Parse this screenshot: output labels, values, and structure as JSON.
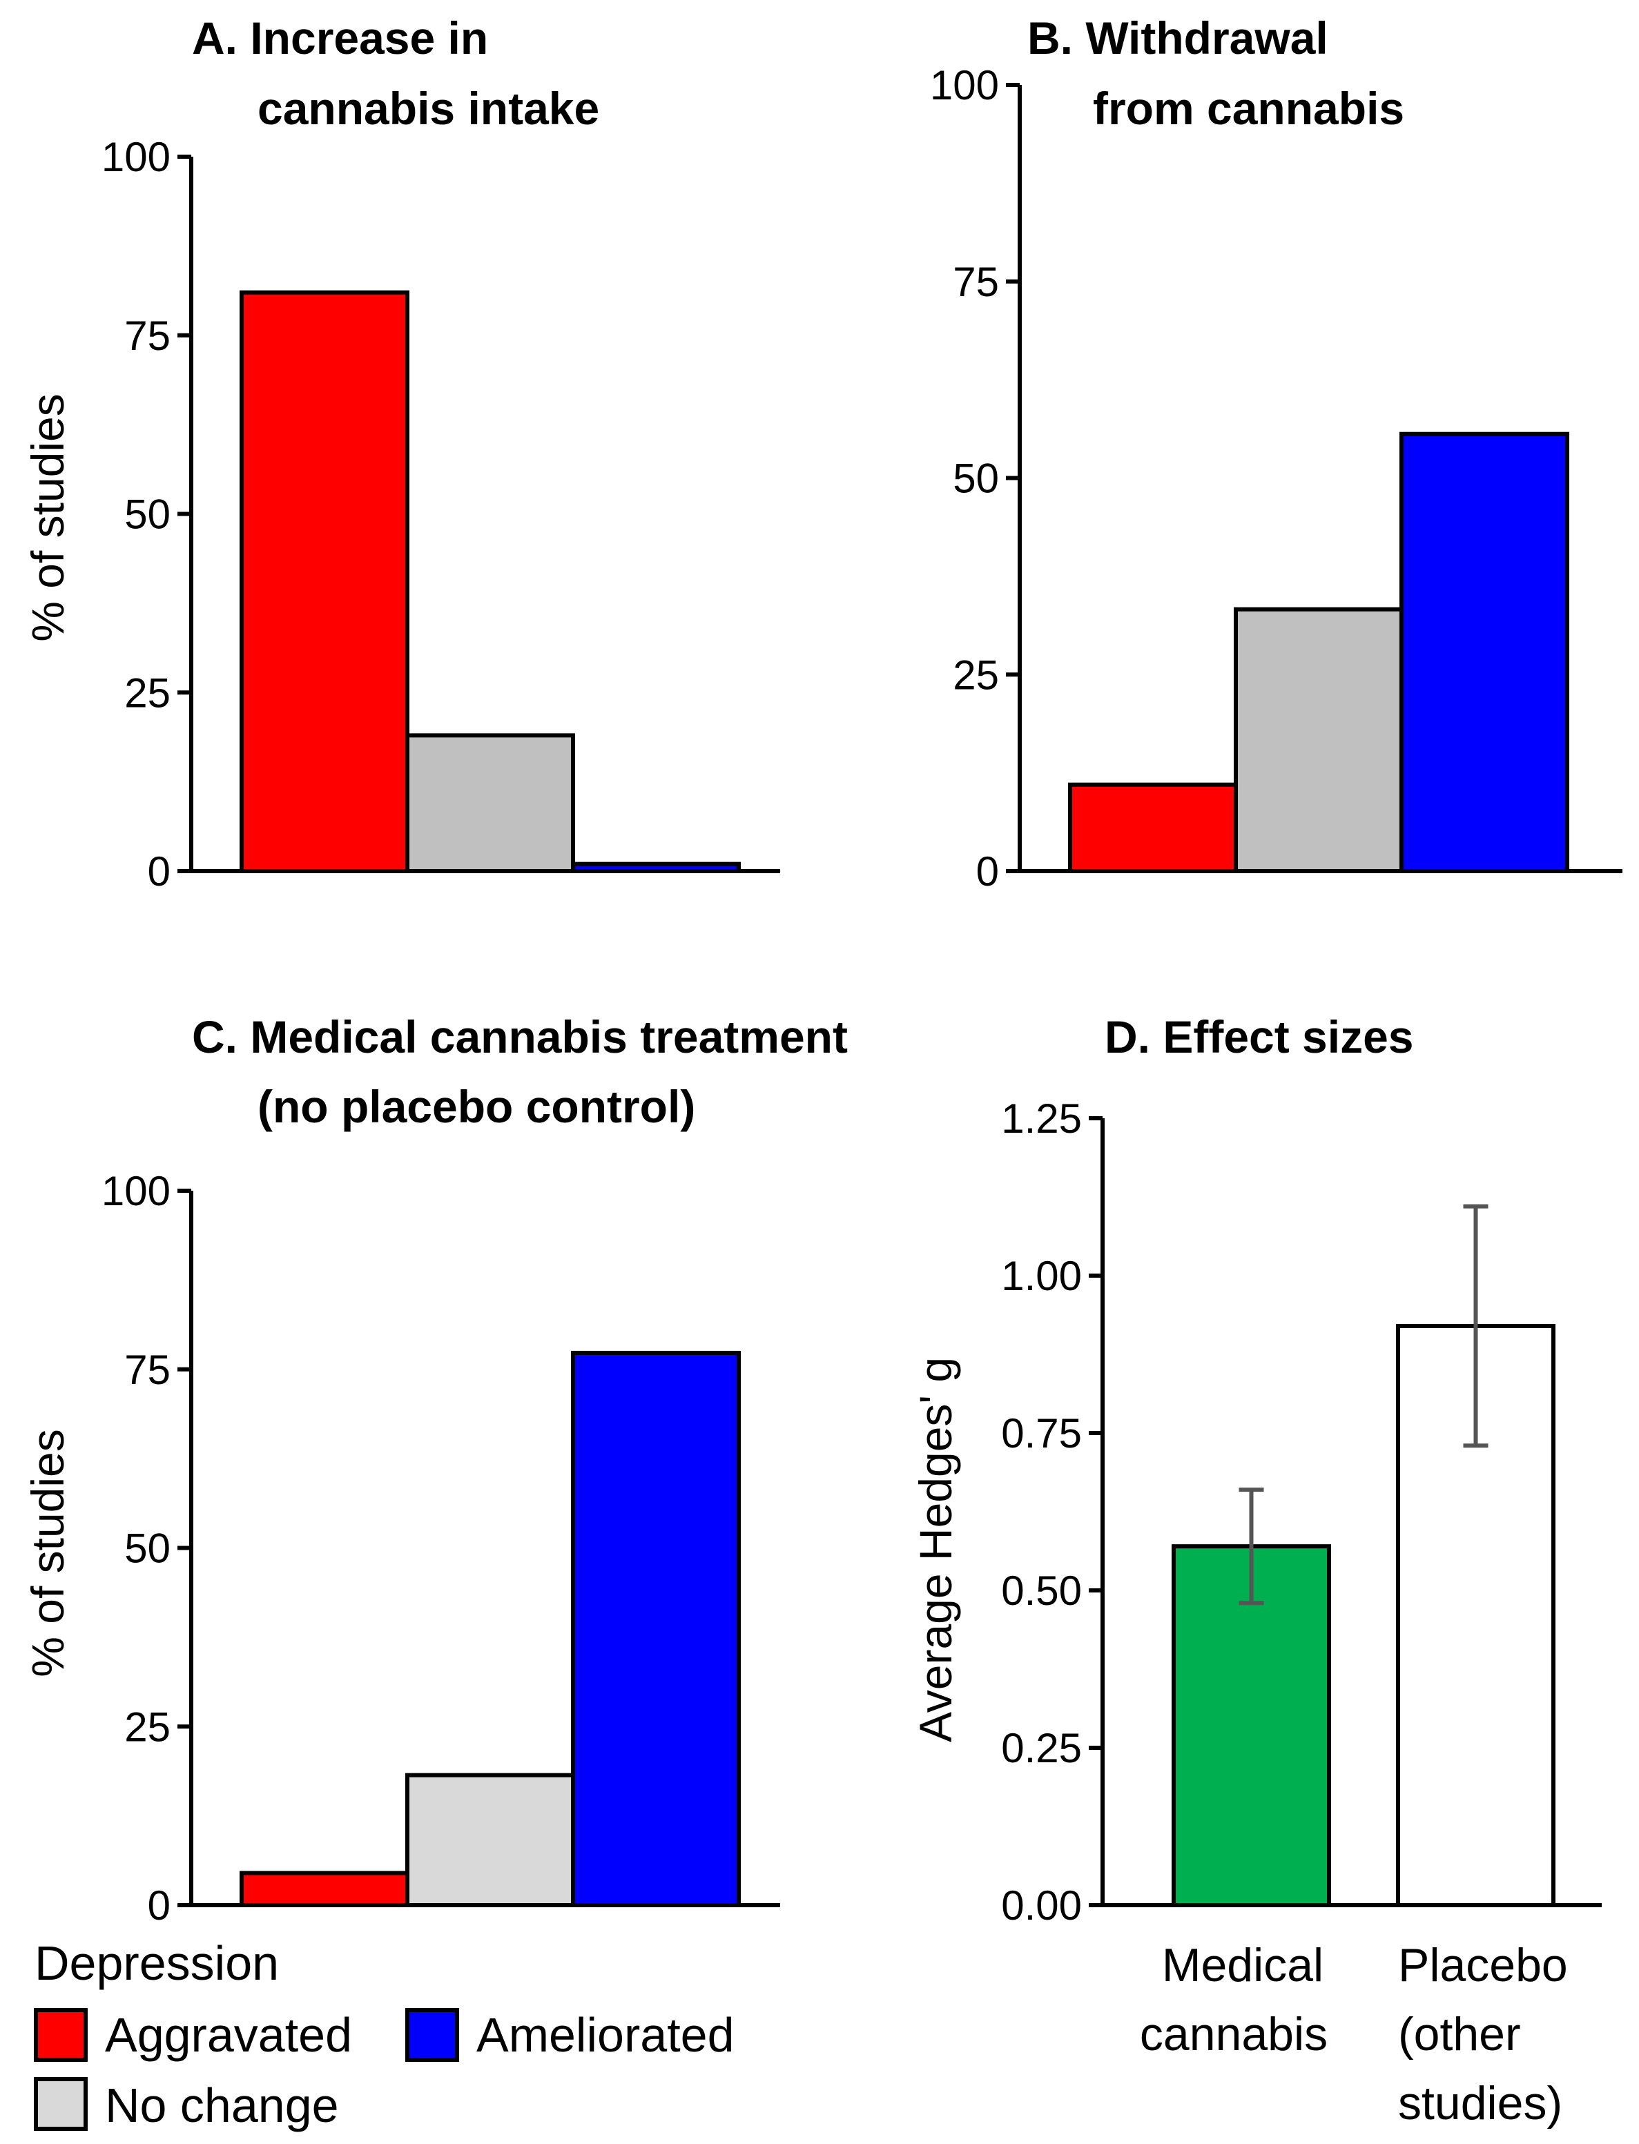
{
  "chart_data": [
    {
      "panel": "A",
      "type": "bar",
      "title": [
        "A. Increase in",
        "cannabis intake"
      ],
      "ylabel": "% of studies",
      "ylim": [
        0,
        100
      ],
      "yticks": [
        "0",
        "25",
        "50",
        "75",
        "100"
      ],
      "categories": [
        "Aggravated",
        "No change",
        "Ameliorated"
      ],
      "values": [
        81,
        19,
        1
      ],
      "colors": [
        "#ff0000",
        "#c0c0c0",
        "#0000ff"
      ]
    },
    {
      "panel": "B",
      "type": "bar",
      "title": [
        "B. Withdrawal",
        "from cannabis"
      ],
      "ylabel": "",
      "ylim": [
        0,
        100
      ],
      "yticks": [
        "0",
        "25",
        "50",
        "75",
        "100"
      ],
      "categories": [
        "Aggravated",
        "No change",
        "Ameliorated"
      ],
      "values": [
        11,
        33.3,
        55.6
      ],
      "colors": [
        "#ff0000",
        "#c0c0c0",
        "#0000ff"
      ]
    },
    {
      "panel": "C",
      "type": "bar",
      "title": [
        "C. Medical cannabis treatment",
        "(no placebo control)"
      ],
      "ylabel": "% of studies",
      "ylim": [
        0,
        100
      ],
      "yticks": [
        "0",
        "25",
        "50",
        "75",
        "100"
      ],
      "categories": [
        "Aggravated",
        "No change",
        "Ameliorated"
      ],
      "values": [
        4.5,
        18.2,
        77.3
      ],
      "colors": [
        "#ff0000",
        "#d9d9d9",
        "#0000ff"
      ]
    },
    {
      "panel": "D",
      "type": "bar",
      "title": [
        "D. Effect sizes"
      ],
      "ylabel": "Average Hedges' g",
      "ylim": [
        0,
        1.25
      ],
      "yticks": [
        "0.00",
        "0.25",
        "0.50",
        "0.75",
        "1.00",
        "1.25"
      ],
      "categories": [
        [
          "Medical",
          "cannabis"
        ],
        [
          "Placebo",
          "(other",
          "studies)"
        ]
      ],
      "values": [
        0.57,
        0.92
      ],
      "errors": [
        [
          0.48,
          0.66
        ],
        [
          0.73,
          1.11
        ]
      ],
      "colors": [
        "#00b050",
        "#ffffff"
      ]
    }
  ],
  "legend": {
    "title": "Depression",
    "items": [
      {
        "label": "Aggravated",
        "color": "#ff0000"
      },
      {
        "label": "Ameliorated",
        "color": "#0000ff"
      },
      {
        "label": "No change",
        "color": "#d9d9d9"
      }
    ]
  }
}
